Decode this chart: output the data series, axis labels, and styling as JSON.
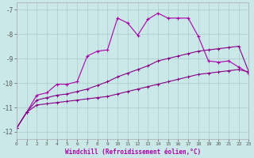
{
  "xlabel": "Windchill (Refroidissement éolien,°C)",
  "background_color": "#cbe8e8",
  "grid_color": "#aacccc",
  "line_color": "#aa00aa",
  "line_color2": "#880088",
  "xlim": [
    0,
    23
  ],
  "ylim": [
    -12.3,
    -6.7
  ],
  "xticks": [
    0,
    1,
    2,
    3,
    4,
    5,
    6,
    7,
    8,
    9,
    10,
    11,
    12,
    13,
    14,
    15,
    16,
    17,
    18,
    19,
    20,
    21,
    22,
    23
  ],
  "yticks": [
    -12,
    -11,
    -10,
    -9,
    -8,
    -7
  ],
  "line1_x": [
    0,
    1,
    2,
    3,
    4,
    5,
    6,
    7,
    8,
    9,
    10,
    11,
    12,
    13,
    14,
    15,
    16,
    17,
    18,
    19,
    20,
    21,
    22,
    23
  ],
  "line1_y": [
    -11.85,
    -11.2,
    -10.5,
    -10.4,
    -10.05,
    -10.05,
    -9.95,
    -8.9,
    -8.7,
    -8.65,
    -7.35,
    -7.55,
    -8.05,
    -7.4,
    -7.15,
    -7.35,
    -7.35,
    -7.35,
    -8.1,
    -9.1,
    -9.15,
    -9.1,
    -9.35,
    -9.6
  ],
  "line2_x": [
    0,
    1,
    2,
    3,
    4,
    5,
    6,
    7,
    8,
    9,
    10,
    11,
    12,
    13,
    14,
    15,
    16,
    17,
    18,
    19,
    20,
    21,
    22,
    23
  ],
  "line2_y": [
    -11.85,
    -11.2,
    -10.7,
    -10.6,
    -10.5,
    -10.45,
    -10.35,
    -10.25,
    -10.1,
    -9.95,
    -9.75,
    -9.6,
    -9.45,
    -9.3,
    -9.1,
    -9.0,
    -8.9,
    -8.8,
    -8.7,
    -8.65,
    -8.6,
    -8.55,
    -8.5,
    -9.55
  ],
  "line3_x": [
    0,
    1,
    2,
    3,
    4,
    5,
    6,
    7,
    8,
    9,
    10,
    11,
    12,
    13,
    14,
    15,
    16,
    17,
    18,
    19,
    20,
    21,
    22,
    23
  ],
  "line3_y": [
    -11.85,
    -11.2,
    -10.9,
    -10.85,
    -10.8,
    -10.75,
    -10.7,
    -10.65,
    -10.6,
    -10.55,
    -10.45,
    -10.35,
    -10.25,
    -10.15,
    -10.05,
    -9.95,
    -9.85,
    -9.75,
    -9.65,
    -9.6,
    -9.55,
    -9.5,
    -9.45,
    -9.55
  ]
}
